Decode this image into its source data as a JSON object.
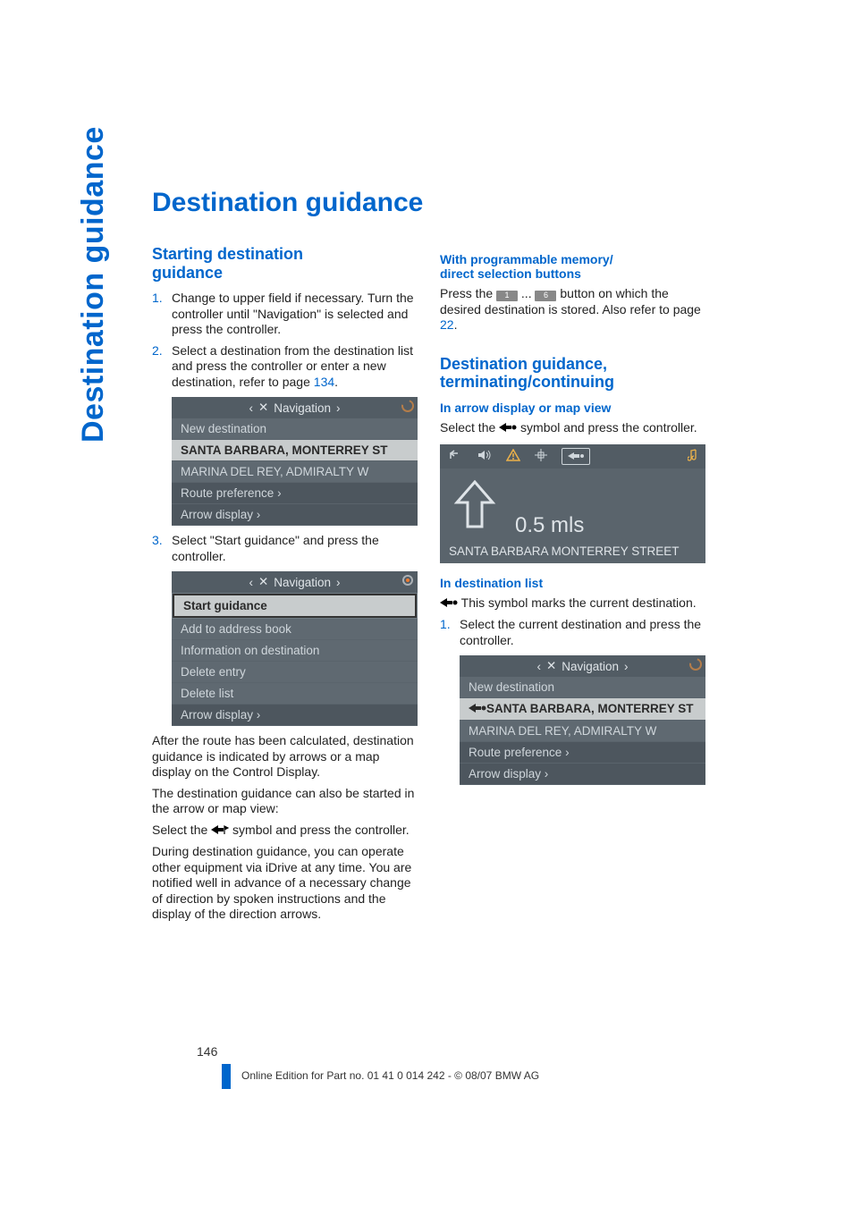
{
  "sidebar_text": "Destination guidance",
  "page_title": "Destination guidance",
  "left": {
    "starting_heading": "Starting destination\nguidance",
    "steps1": [
      {
        "n": "1.",
        "text_a": "Change to upper field if necessary. Turn the controller until \"Navigation\" is selected and press the controller."
      },
      {
        "n": "2.",
        "text_a": "Select a destination from the destination list and press the controller or enter a new destination, refer to page ",
        "link": "134",
        "text_b": "."
      }
    ],
    "nav1": {
      "header_left": "‹",
      "header_icon": "✕",
      "header_title": "Navigation",
      "header_right": "›",
      "rows": [
        {
          "text": "New destination",
          "cls": "dim"
        },
        {
          "text": "SANTA BARBARA, MONTERREY ST",
          "cls": "highlight"
        },
        {
          "text": "MARINA DEL REY, ADMIRALTY W",
          "cls": "dim"
        },
        {
          "text": "Route preference ›",
          "cls": "dark"
        },
        {
          "text": "Arrow display ›",
          "cls": "dark"
        }
      ]
    },
    "step3": {
      "n": "3.",
      "text": "Select \"Start guidance\" and press the controller."
    },
    "nav2": {
      "header_left": "‹",
      "header_icon": "✕",
      "header_title": "Navigation",
      "header_right": "›",
      "rows": [
        {
          "text": "Start guidance",
          "cls": "selected"
        },
        {
          "text": "Add to address book",
          "cls": "dim"
        },
        {
          "text": "Information on destination",
          "cls": "dim"
        },
        {
          "text": "Delete entry",
          "cls": "dim"
        },
        {
          "text": "Delete list",
          "cls": "dim"
        },
        {
          "text": "Arrow display ›",
          "cls": "dark"
        }
      ]
    },
    "after1": "After the route has been calculated, destination guidance is indicated by arrows or a map display on the Control Display.",
    "after2": "The destination guidance can also be started in the arrow or map view:",
    "after3_a": "Select the ",
    "after3_b": " symbol and press the controller.",
    "after4": "During destination guidance, you can operate other equipment via iDrive at any time. You are notified well in advance of a necessary change of direction by spoken instructions and the display of the direction arrows."
  },
  "right": {
    "prog_heading": "With programmable memory/\ndirect selection buttons",
    "prog_text_a": "Press the ",
    "prog_key1": "1",
    "prog_ellipsis": " ... ",
    "prog_key2": "6",
    "prog_text_b": " button on which the desired destination is stored. Also refer to page ",
    "prog_link": "22",
    "prog_text_c": ".",
    "term_heading": "Destination guidance,\nterminating/continuing",
    "arrow_heading": "In arrow display or map view",
    "arrow_text_a": "Select the ",
    "arrow_text_b": " symbol and press the controller.",
    "arrowshot": {
      "dist": "0.5 mls",
      "street": "SANTA BARBARA MONTERREY STREET"
    },
    "destlist_heading": "In destination list",
    "destlist_line": " This symbol marks the current destination.",
    "destlist_step": {
      "n": "1.",
      "text": "Select the current destination and press the controller."
    },
    "nav3": {
      "header_left": "‹",
      "header_icon": "✕",
      "header_title": "Navigation",
      "header_right": "›",
      "rows": [
        {
          "text": "New destination",
          "cls": "dim"
        },
        {
          "text": "SANTA BARBARA, MONTERREY ST",
          "cls": "highlight",
          "marker": true
        },
        {
          "text": "MARINA DEL REY, ADMIRALTY W",
          "cls": "dim"
        },
        {
          "text": "Route preference ›",
          "cls": "dark"
        },
        {
          "text": "Arrow display ›",
          "cls": "dark"
        }
      ]
    }
  },
  "footer": {
    "page": "146",
    "line": "Online Edition for Part no. 01 41 0 014 242 - © 08/07 BMW AG"
  },
  "svg": {
    "arrow_dot": "<svg width='20' height='12'><polygon points='0,6 8,1 8,4 14,4 14,8 8,8 8,11' fill='#000'/><circle cx='17' cy='6' r='2.5' fill='#000'/></svg>",
    "arrow_flag": "<svg width='20' height='12'><polygon points='0,6 8,1 8,4 14,4 14,8 8,8 8,11' fill='#000'/><path d='M15,2 L19,4 L15,6 Z M15,2 L15,11' stroke='#000' fill='#000' stroke-width='1.2'/></svg>",
    "arrow_dot_white": "<svg width='20' height='12'><polygon points='0,6 8,1 8,4 14,4 14,8 8,8 8,11' fill='#2a2a2a'/><circle cx='17' cy='6' r='2.5' fill='#2a2a2a'/></svg>"
  }
}
